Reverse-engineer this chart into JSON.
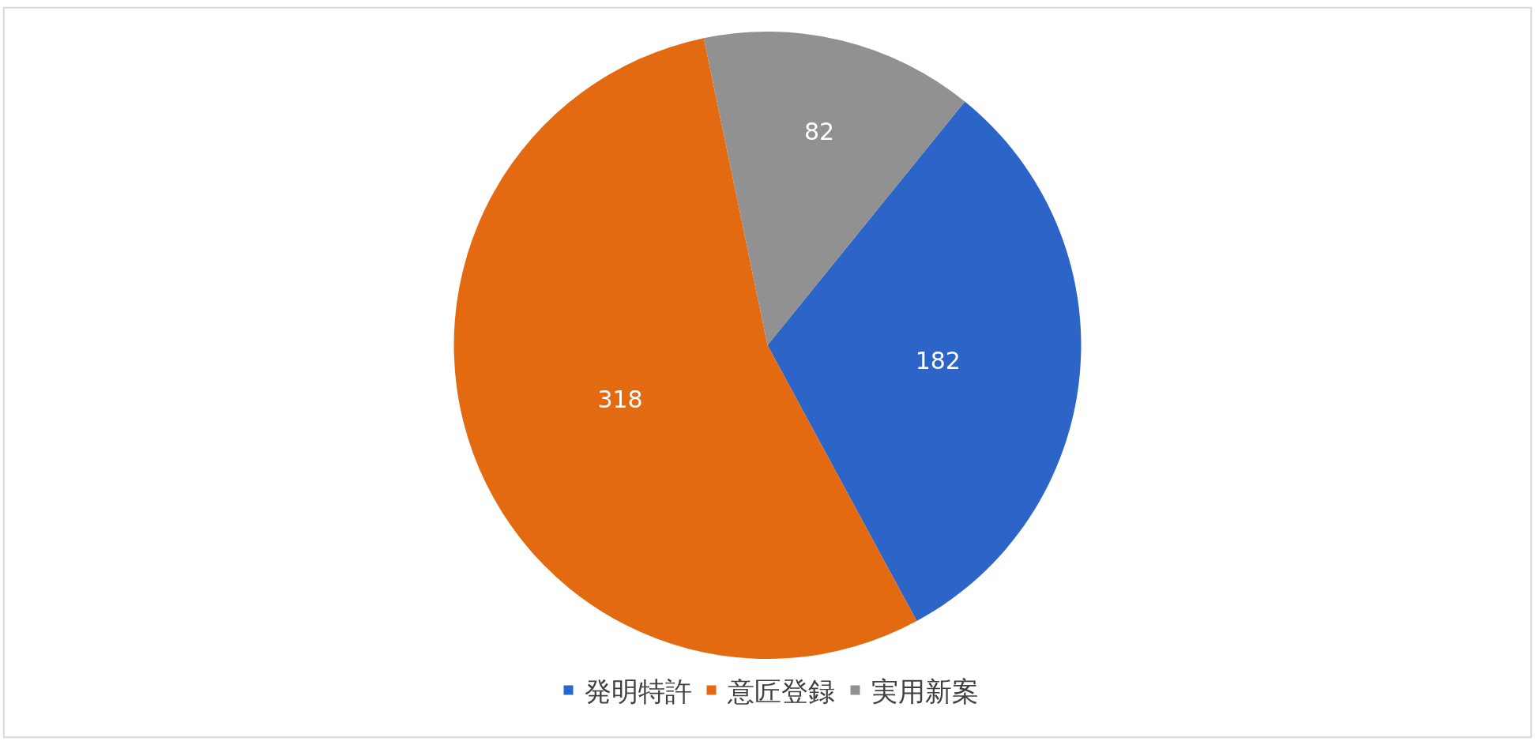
{
  "chart_data": {
    "type": "pie",
    "categories": [
      "発明特許",
      "意匠登録",
      "実用新案"
    ],
    "values": [
      182,
      318,
      82
    ],
    "colors": [
      "#2c64c8",
      "#e46a12",
      "#919191"
    ],
    "data_labels": true,
    "legend": "bottom"
  }
}
